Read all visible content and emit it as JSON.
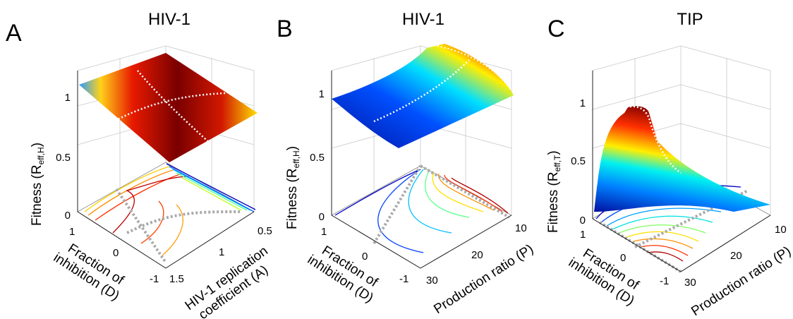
{
  "chart_data": [
    {
      "panel": "A",
      "title": "HIV-1",
      "type": "surface",
      "zlabel_main": "Fitness (R",
      "zlabel_sub": "eff,H",
      "zlabel_end": ")",
      "xlabel": [
        "Fraction of",
        "inhibition (D)"
      ],
      "ylabel": [
        "HIV-1 replication",
        "coefficient (A)"
      ],
      "z_ticks": [
        "0",
        "0.5",
        "1"
      ],
      "x_ticks": [
        "1",
        "0",
        "-1"
      ],
      "y_ticks": [
        "0.5",
        "1",
        "1.5"
      ],
      "zlim": [
        0,
        1.15
      ],
      "colormap": "jet"
    },
    {
      "panel": "B",
      "title": "HIV-1",
      "type": "surface",
      "zlabel_main": "Fitness (R",
      "zlabel_sub": "eff,H",
      "zlabel_end": ")",
      "xlabel": [
        "Fraction of",
        "inhibition (D)"
      ],
      "ylabel": [
        "Production ratio (P)"
      ],
      "z_ticks": [
        "0",
        "0.5",
        "1"
      ],
      "x_ticks": [
        "1",
        "0",
        "-1"
      ],
      "y_ticks": [
        "10",
        "20",
        "30"
      ],
      "zlim": [
        0,
        1.15
      ],
      "colormap": "jet"
    },
    {
      "panel": "C",
      "title": "TIP",
      "type": "surface",
      "zlabel_main": "Fitness (R",
      "zlabel_sub": "eff,T",
      "zlabel_end": ")",
      "xlabel": [
        "Fraction of",
        "inhibition (D)"
      ],
      "ylabel": [
        "Production ratio (P)"
      ],
      "z_ticks": [
        "0",
        "0.5",
        "1"
      ],
      "x_ticks": [
        "1",
        "0",
        "-1"
      ],
      "y_ticks": [
        "10",
        "20",
        "30"
      ],
      "zlim": [
        0,
        1.15
      ],
      "colormap": "jet"
    }
  ]
}
